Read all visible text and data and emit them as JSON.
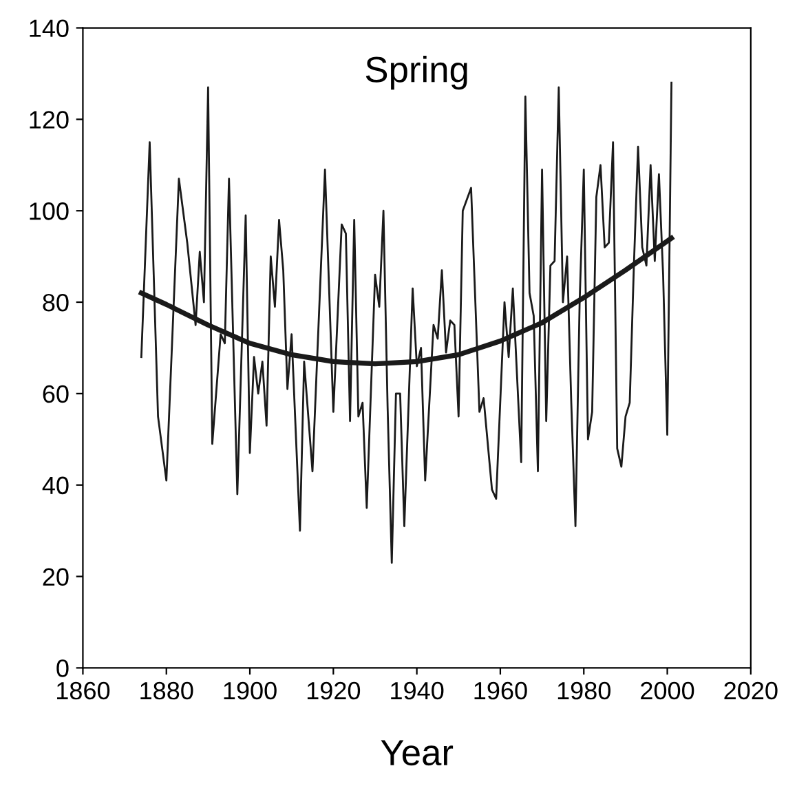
{
  "chart_data": {
    "type": "line",
    "title": "Spring",
    "xlabel": "Year",
    "xlim": [
      1860,
      2020
    ],
    "ylim": [
      0,
      140
    ],
    "xticks": [
      1860,
      1880,
      1900,
      1920,
      1940,
      1960,
      1980,
      2000,
      2020
    ],
    "yticks": [
      0,
      20,
      40,
      60,
      80,
      100,
      120,
      140
    ],
    "grid": false,
    "legend": false,
    "marker": "none",
    "series": [
      {
        "color": "#1a1a1a",
        "line_style": "solid",
        "x": [
          1874,
          1876,
          1878,
          1880,
          1883,
          1885,
          1887,
          1888,
          1889,
          1890,
          1891,
          1893,
          1894,
          1895,
          1897,
          1899,
          1900,
          1901,
          1902,
          1903,
          1904,
          1905,
          1906,
          1907,
          1908,
          1909,
          1910,
          1912,
          1913,
          1915,
          1918,
          1920,
          1922,
          1923,
          1924,
          1925,
          1926,
          1927,
          1928,
          1930,
          1931,
          1932,
          1933,
          1934,
          1935,
          1936,
          1937,
          1939,
          1940,
          1941,
          1942,
          1944,
          1945,
          1946,
          1947,
          1948,
          1949,
          1950,
          1951,
          1953,
          1955,
          1956,
          1958,
          1959,
          1961,
          1962,
          1963,
          1965,
          1966,
          1967,
          1968,
          1969,
          1970,
          1971,
          1972,
          1973,
          1974,
          1975,
          1976,
          1977,
          1978,
          1979,
          1980,
          1981,
          1982,
          1983,
          1984,
          1985,
          1986,
          1987,
          1988,
          1989,
          1990,
          1991,
          1992,
          1993,
          1994,
          1995,
          1996,
          1997,
          1998,
          1999,
          2000,
          2001
        ],
        "values": [
          68,
          115,
          55,
          41,
          107,
          93,
          75,
          91,
          80,
          127,
          49,
          73,
          71,
          107,
          38,
          99,
          47,
          68,
          60,
          67,
          53,
          90,
          79,
          98,
          87,
          61,
          73,
          30,
          67,
          43,
          109,
          56,
          97,
          95,
          54,
          98,
          55,
          58,
          35,
          86,
          79,
          100,
          57,
          23,
          60,
          60,
          31,
          83,
          66,
          70,
          41,
          75,
          72,
          87,
          69,
          76,
          75,
          55,
          100,
          105,
          56,
          59,
          39,
          37,
          80,
          68,
          83,
          45,
          125,
          82,
          77,
          43,
          109,
          54,
          88,
          89,
          127,
          80,
          90,
          58,
          31,
          80,
          109,
          50,
          56,
          103,
          110,
          92,
          93,
          115,
          48,
          44,
          55,
          58,
          88,
          114,
          92,
          88,
          110,
          89,
          108,
          86,
          51,
          128
        ]
      },
      {
        "color": "#1a1a1a",
        "line_style": "solid",
        "x": [
          1874,
          1880,
          1890,
          1900,
          1910,
          1920,
          1930,
          1940,
          1950,
          1960,
          1970,
          1980,
          1990,
          2001
        ],
        "values": [
          82,
          79.5,
          75,
          71,
          68.5,
          67,
          66.5,
          67,
          68.5,
          71.5,
          75.5,
          81,
          87,
          94
        ]
      }
    ]
  }
}
